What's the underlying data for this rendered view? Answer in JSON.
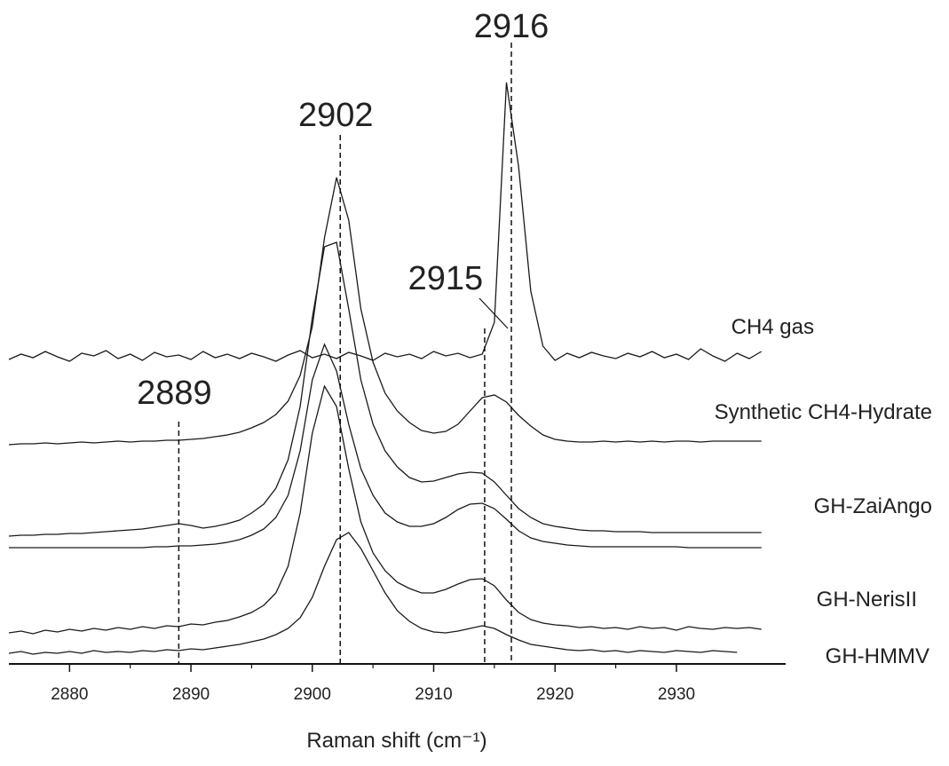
{
  "chart_data": {
    "type": "line",
    "x_label": "Raman shift (cm⁻¹)",
    "xlim": [
      2875,
      2939
    ],
    "ylim": [
      0,
      700
    ],
    "xticks": [
      2880,
      2890,
      2900,
      2910,
      2920,
      2930
    ],
    "x": [
      2875,
      2876,
      2877,
      2878,
      2879,
      2880,
      2881,
      2882,
      2883,
      2884,
      2885,
      2886,
      2887,
      2888,
      2889,
      2890,
      2891,
      2892,
      2893,
      2894,
      2895,
      2896,
      2897,
      2898,
      2899,
      2900,
      2901,
      2902,
      2903,
      2904,
      2905,
      2906,
      2907,
      2908,
      2909,
      2910,
      2911,
      2912,
      2913,
      2914,
      2915,
      2916,
      2917,
      2918,
      2919,
      2920,
      2921,
      2922,
      2923,
      2924,
      2925,
      2926,
      2927,
      2928,
      2929,
      2930,
      2931,
      2932,
      2933,
      2934,
      2935,
      2936,
      2937
    ],
    "series": [
      {
        "name": "CH4 gas",
        "color": "#1a1a1a",
        "values": [
          343,
          349,
          345,
          352,
          346,
          341,
          350,
          347,
          353,
          344,
          349,
          342,
          351,
          346,
          348,
          343,
          352,
          345,
          349,
          344,
          350,
          346,
          341,
          348,
          353,
          345,
          349,
          344,
          351,
          347,
          342,
          350,
          346,
          349,
          344,
          352,
          347,
          350,
          345,
          349,
          385,
          655,
          560,
          420,
          358,
          342,
          350,
          345,
          351,
          347,
          344,
          350,
          346,
          352,
          345,
          349,
          343,
          355,
          347,
          341,
          350,
          344,
          352
        ]
      },
      {
        "name": "Synthetic CH4-Hydrate",
        "color": "#1a1a1a",
        "values": [
          247,
          248,
          248,
          249,
          248,
          249,
          250,
          249,
          250,
          251,
          250,
          251,
          251,
          252,
          252,
          253,
          254,
          256,
          258,
          261,
          266,
          272,
          281,
          296,
          325,
          380,
          480,
          548,
          500,
          400,
          340,
          305,
          285,
          272,
          263,
          260,
          262,
          270,
          285,
          300,
          303,
          295,
          280,
          268,
          258,
          253,
          251,
          250,
          250,
          251,
          250,
          251,
          250,
          251,
          250,
          251,
          251,
          250,
          251,
          251,
          251,
          251,
          251
        ]
      },
      {
        "name": "GH-ZaiAngo",
        "color": "#1a1a1a",
        "values": [
          144,
          145,
          145,
          146,
          146,
          147,
          147,
          148,
          149,
          150,
          151,
          152,
          154,
          156,
          158,
          156,
          153,
          155,
          158,
          162,
          170,
          180,
          198,
          230,
          290,
          390,
          470,
          475,
          400,
          320,
          270,
          240,
          222,
          210,
          205,
          206,
          210,
          214,
          216,
          215,
          205,
          190,
          175,
          165,
          158,
          155,
          153,
          151,
          150,
          150,
          149,
          149,
          149,
          148,
          148,
          148,
          148,
          148,
          148,
          148,
          148,
          148,
          148
        ]
      },
      {
        "color": "#1a1a1a",
        "values": [
          131,
          131,
          131,
          131,
          131,
          131,
          131,
          131,
          131,
          131,
          131,
          131,
          132,
          132,
          133,
          133,
          134,
          135,
          137,
          140,
          145,
          152,
          165,
          190,
          240,
          320,
          360,
          330,
          270,
          220,
          190,
          170,
          160,
          155,
          155,
          158,
          165,
          174,
          180,
          181,
          175,
          163,
          150,
          142,
          138,
          136,
          134,
          133,
          132,
          132,
          132,
          132,
          132,
          132,
          132,
          132,
          131,
          131,
          131,
          131,
          131,
          131,
          131
        ]
      },
      {
        "name": "GH-NerisII",
        "color": "#1a1a1a",
        "values": [
          35,
          37,
          34,
          38,
          36,
          39,
          37,
          40,
          38,
          41,
          39,
          42,
          40,
          43,
          42,
          45,
          44,
          47,
          49,
          53,
          58,
          66,
          80,
          110,
          170,
          260,
          313,
          290,
          220,
          160,
          125,
          105,
          92,
          85,
          80,
          80,
          84,
          90,
          95,
          96,
          88,
          72,
          58,
          50,
          46,
          44,
          43,
          41,
          42,
          40,
          41,
          39,
          42,
          40,
          41,
          38,
          42,
          40,
          39,
          41,
          40,
          41,
          39
        ]
      },
      {
        "name": "GH-HMMV",
        "color": "#1a1a1a",
        "values": [
          12,
          14,
          11,
          13,
          12,
          14,
          12,
          15,
          13,
          14,
          13,
          15,
          14,
          16,
          15,
          17,
          16,
          18,
          20,
          22,
          25,
          28,
          33,
          40,
          52,
          75,
          110,
          140,
          148,
          130,
          105,
          80,
          60,
          48,
          40,
          36,
          35,
          37,
          40,
          43,
          40,
          33,
          27,
          22,
          20,
          18,
          16,
          15,
          16,
          14,
          15,
          13,
          15,
          14,
          13,
          15,
          14,
          13,
          15,
          14,
          13,
          null,
          null
        ]
      }
    ],
    "annotations": [
      {
        "label": "2916",
        "x": 2916.4
      },
      {
        "label": "2902",
        "x": 2902.3
      },
      {
        "label": "2915",
        "x": 2914.2
      },
      {
        "label": "2889",
        "x": 2889
      }
    ]
  }
}
